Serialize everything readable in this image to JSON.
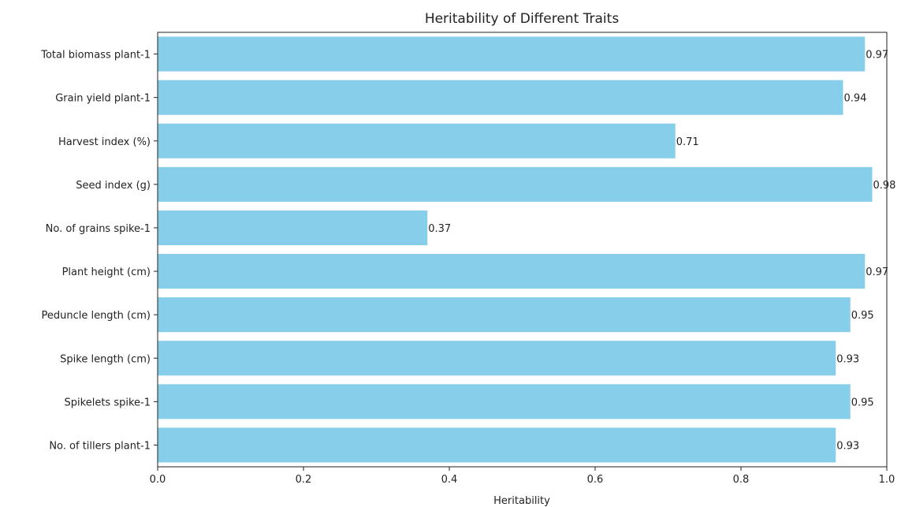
{
  "chart_data": {
    "type": "bar",
    "orientation": "horizontal",
    "title": "Heritability of Different Traits",
    "xlabel": "Heritability",
    "ylabel": "",
    "xlim": [
      0.0,
      1.0
    ],
    "xticks": [
      "0.0",
      "0.2",
      "0.4",
      "0.6",
      "0.8",
      "1.0"
    ],
    "grid": false,
    "bar_color": "#87CEEB",
    "categories": [
      "Total biomass plant-1",
      "Grain yield plant-1",
      "Harvest index (%)",
      "Seed index (g)",
      "No. of grains spike-1",
      "Plant height (cm)",
      "Peduncle length (cm)",
      "Spike length (cm)",
      "Spikelets spike-1",
      "No. of tillers plant-1"
    ],
    "values": [
      0.97,
      0.94,
      0.71,
      0.98,
      0.37,
      0.97,
      0.95,
      0.93,
      0.95,
      0.93
    ],
    "value_labels": [
      "0.97",
      "0.94",
      "0.71",
      "0.98",
      "0.37",
      "0.97",
      "0.95",
      "0.93",
      "0.95",
      "0.93"
    ]
  }
}
